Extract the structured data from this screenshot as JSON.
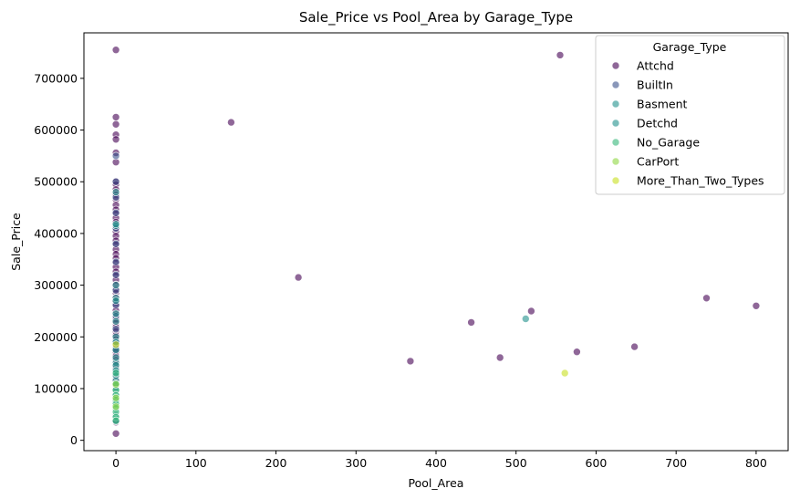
{
  "chart_data": {
    "type": "scatter",
    "title": "Sale_Price vs Pool_Area by Garage_Type",
    "xlabel": "Pool_Area",
    "ylabel": "Sale_Price",
    "xlim": [
      -40,
      840
    ],
    "ylim": [
      -20000,
      788000
    ],
    "xticks": [
      0,
      100,
      200,
      300,
      400,
      500,
      600,
      700,
      800
    ],
    "yticks": [
      0,
      100000,
      200000,
      300000,
      400000,
      500000,
      600000,
      700000
    ],
    "grid": false,
    "legend": {
      "title": "Garage_Type",
      "placement": "top-right"
    },
    "series": [
      {
        "name": "Attchd",
        "color": "#440154",
        "points": [
          [
            0,
            755000
          ],
          [
            0,
            625000
          ],
          [
            0,
            611000
          ],
          [
            0,
            591000
          ],
          [
            0,
            582000
          ],
          [
            0,
            556000
          ],
          [
            0,
            538000
          ],
          [
            0,
            501000
          ],
          [
            0,
            495000
          ],
          [
            0,
            485000
          ],
          [
            0,
            475000
          ],
          [
            0,
            466000
          ],
          [
            0,
            455000
          ],
          [
            0,
            446000
          ],
          [
            0,
            438000
          ],
          [
            0,
            430000
          ],
          [
            0,
            422000
          ],
          [
            0,
            412000
          ],
          [
            0,
            404000
          ],
          [
            0,
            395000
          ],
          [
            0,
            386000
          ],
          [
            0,
            378000
          ],
          [
            0,
            369000
          ],
          [
            0,
            360000
          ],
          [
            0,
            352000
          ],
          [
            0,
            343000
          ],
          [
            0,
            335000
          ],
          [
            0,
            326000
          ],
          [
            0,
            318000
          ],
          [
            0,
            310000
          ],
          [
            0,
            301000
          ],
          [
            0,
            293000
          ],
          [
            0,
            285000
          ],
          [
            0,
            276000
          ],
          [
            0,
            268000
          ],
          [
            0,
            260000
          ],
          [
            0,
            251000
          ],
          [
            0,
            243000
          ],
          [
            0,
            235000
          ],
          [
            0,
            227000
          ],
          [
            0,
            219000
          ],
          [
            0,
            211000
          ],
          [
            0,
            203000
          ],
          [
            0,
            195000
          ],
          [
            0,
            187000
          ],
          [
            0,
            179000
          ],
          [
            0,
            171000
          ],
          [
            0,
            163000
          ],
          [
            0,
            155000
          ],
          [
            0,
            147000
          ],
          [
            0,
            139000
          ],
          [
            0,
            128000
          ],
          [
            0,
            117000
          ],
          [
            0,
            104000
          ],
          [
            0,
            35000
          ],
          [
            0,
            13000
          ],
          [
            144,
            615000
          ],
          [
            228,
            315000
          ],
          [
            368,
            153000
          ],
          [
            444,
            228000
          ],
          [
            480,
            160000
          ],
          [
            519,
            250000
          ],
          [
            555,
            745000
          ],
          [
            576,
            171000
          ],
          [
            648,
            181000
          ],
          [
            738,
            275000
          ],
          [
            800,
            260000
          ]
        ]
      },
      {
        "name": "BuiltIn",
        "color": "#3b528b",
        "points": [
          [
            0,
            550000
          ],
          [
            0,
            500000
          ],
          [
            0,
            470000
          ],
          [
            0,
            440000
          ],
          [
            0,
            410000
          ],
          [
            0,
            380000
          ],
          [
            0,
            345000
          ],
          [
            0,
            320000
          ],
          [
            0,
            290000
          ],
          [
            0,
            262000
          ],
          [
            0,
            240000
          ],
          [
            0,
            215000
          ],
          [
            0,
            190000
          ],
          [
            0,
            175000
          ]
        ]
      },
      {
        "name": "Basment",
        "color": "#21918c",
        "points": [
          [
            0,
            415000
          ],
          [
            0,
            275000
          ],
          [
            0,
            245000
          ],
          [
            0,
            200000
          ],
          [
            0,
            175000
          ],
          [
            0,
            150000
          ],
          [
            0,
            132000
          ]
        ]
      },
      {
        "name": "Detchd",
        "color": "#21918c",
        "points": [
          [
            0,
            480000
          ],
          [
            0,
            418000
          ],
          [
            0,
            300000
          ],
          [
            0,
            270000
          ],
          [
            0,
            230000
          ],
          [
            0,
            190000
          ],
          [
            0,
            160000
          ],
          [
            0,
            145000
          ],
          [
            0,
            135000
          ],
          [
            0,
            125000
          ],
          [
            0,
            115000
          ],
          [
            0,
            107000
          ],
          [
            0,
            98000
          ],
          [
            0,
            88000
          ],
          [
            0,
            80000
          ],
          [
            0,
            73000
          ],
          [
            0,
            60000
          ],
          [
            0,
            48000
          ],
          [
            0,
            37000
          ],
          [
            512,
            235000
          ]
        ]
      },
      {
        "name": "No_Garage",
        "color": "#35b779",
        "points": [
          [
            0,
            130000
          ],
          [
            0,
            110000
          ],
          [
            0,
            97000
          ],
          [
            0,
            87000
          ],
          [
            0,
            78000
          ],
          [
            0,
            70000
          ],
          [
            0,
            62000
          ],
          [
            0,
            55000
          ],
          [
            0,
            45000
          ],
          [
            0,
            38000
          ]
        ]
      },
      {
        "name": "CarPort",
        "color": "#90d743",
        "points": [
          [
            0,
            108000
          ],
          [
            0,
            82000
          ],
          [
            0,
            65000
          ]
        ]
      },
      {
        "name": "More_Than_Two_Types",
        "color": "#c8e020",
        "points": [
          [
            0,
            185000
          ],
          [
            561,
            130000
          ]
        ]
      }
    ]
  }
}
